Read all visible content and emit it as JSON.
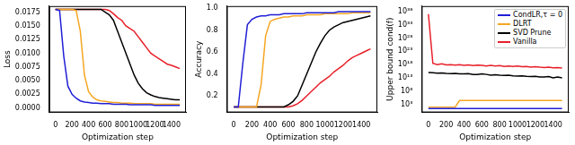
{
  "chart_data": [
    {
      "type": "line",
      "x_label": "Optimization step",
      "y_label": "Loss",
      "grid": false,
      "x": [
        0,
        50,
        100,
        150,
        200,
        250,
        300,
        350,
        400,
        450,
        500,
        550,
        600,
        650,
        700,
        750,
        800,
        850,
        900,
        950,
        1000,
        1050,
        1100,
        1150,
        1200,
        1250,
        1300,
        1350,
        1400,
        1450,
        1500
      ],
      "xlim": [
        -75,
        1575
      ],
      "xticks": [
        0,
        200,
        400,
        600,
        800,
        1000,
        1200,
        1400
      ],
      "ylim": [
        -0.0008,
        0.0186
      ],
      "yticks": [
        {
          "value": 0,
          "label": "0.0000"
        },
        {
          "value": 0.0025,
          "label": "0.0025"
        },
        {
          "value": 0.005,
          "label": "0.0050"
        },
        {
          "value": 0.0075,
          "label": "0.0075"
        },
        {
          "value": 0.01,
          "label": "0.0100"
        },
        {
          "value": 0.0125,
          "label": "0.0125"
        },
        {
          "value": 0.015,
          "label": "0.0150"
        },
        {
          "value": 0.0175,
          "label": "0.0175"
        }
      ],
      "series": [
        {
          "name": "CondLR,τ = 0",
          "color": "#1f1fd6",
          "values": [
            0.018,
            0.0178,
            0.0095,
            0.004,
            0.0025,
            0.0018,
            0.0013,
            0.0011,
            0.001,
            0.0009,
            0.0009,
            0.0008,
            0.0008,
            0.0008,
            0.0007,
            0.0007,
            0.0007,
            0.0007,
            0.0006,
            0.0006,
            0.0006,
            0.0006,
            0.0006,
            0.0006,
            0.0005,
            0.0005,
            0.0005,
            0.0005,
            0.0005,
            0.0005,
            0.0005
          ]
        },
        {
          "name": "DLRT",
          "color": "#f5a623",
          "values": [
            0.018,
            0.018,
            0.018,
            0.018,
            0.018,
            0.0178,
            0.014,
            0.006,
            0.003,
            0.002,
            0.0015,
            0.0013,
            0.0012,
            0.0011,
            0.001,
            0.001,
            0.0009,
            0.0009,
            0.0009,
            0.0008,
            0.0008,
            0.0008,
            0.0008,
            0.0008,
            0.0007,
            0.0007,
            0.0007,
            0.0007,
            0.0007,
            0.0007,
            0.0007
          ]
        },
        {
          "name": "SVD Prune",
          "color": "#000000",
          "values": [
            0.018,
            0.018,
            0.018,
            0.018,
            0.018,
            0.018,
            0.018,
            0.018,
            0.018,
            0.018,
            0.018,
            0.018,
            0.0175,
            0.017,
            0.016,
            0.014,
            0.012,
            0.01,
            0.008,
            0.006,
            0.0045,
            0.0035,
            0.0028,
            0.0024,
            0.0021,
            0.0019,
            0.0018,
            0.0017,
            0.0016,
            0.0015,
            0.0015
          ]
        },
        {
          "name": "Vanilla",
          "color": "#e8202a",
          "values": [
            0.018,
            0.018,
            0.018,
            0.018,
            0.018,
            0.018,
            0.018,
            0.018,
            0.018,
            0.018,
            0.018,
            0.018,
            0.018,
            0.0178,
            0.0172,
            0.0165,
            0.016,
            0.015,
            0.0145,
            0.014,
            0.013,
            0.012,
            0.011,
            0.01,
            0.0095,
            0.009,
            0.0085,
            0.008,
            0.0078,
            0.0075,
            0.0072
          ]
        }
      ]
    },
    {
      "type": "line",
      "x_label": "Optimization step",
      "y_label": "Accuracy",
      "grid": false,
      "x": [
        0,
        50,
        100,
        150,
        200,
        250,
        300,
        350,
        400,
        450,
        500,
        550,
        600,
        650,
        700,
        750,
        800,
        850,
        900,
        950,
        1000,
        1050,
        1100,
        1150,
        1200,
        1250,
        1300,
        1350,
        1400,
        1450,
        1500
      ],
      "xlim": [
        -75,
        1575
      ],
      "xticks": [
        0,
        200,
        400,
        600,
        800,
        1000,
        1200,
        1400
      ],
      "ylim": [
        0.05,
        1.02
      ],
      "yticks": [
        0.2,
        0.4,
        0.6,
        0.8,
        {
          "value": 1,
          "label": "1.0"
        }
      ],
      "series": [
        {
          "name": "CondLR,τ = 0",
          "color": "#1f1fd6",
          "values": [
            0.1,
            0.1,
            0.5,
            0.85,
            0.9,
            0.92,
            0.93,
            0.93,
            0.94,
            0.94,
            0.94,
            0.95,
            0.95,
            0.95,
            0.95,
            0.95,
            0.96,
            0.96,
            0.96,
            0.96,
            0.96,
            0.96,
            0.96,
            0.97,
            0.97,
            0.97,
            0.97,
            0.97,
            0.97,
            0.97,
            0.97
          ]
        },
        {
          "name": "DLRT",
          "color": "#f5a623",
          "values": [
            0.1,
            0.1,
            0.1,
            0.1,
            0.1,
            0.1,
            0.3,
            0.75,
            0.88,
            0.9,
            0.91,
            0.92,
            0.92,
            0.93,
            0.93,
            0.93,
            0.94,
            0.94,
            0.94,
            0.94,
            0.95,
            0.95,
            0.95,
            0.95,
            0.95,
            0.95,
            0.96,
            0.96,
            0.96,
            0.96,
            0.96
          ]
        },
        {
          "name": "SVD Prune",
          "color": "#000000",
          "values": [
            0.1,
            0.1,
            0.1,
            0.1,
            0.1,
            0.1,
            0.1,
            0.1,
            0.1,
            0.1,
            0.1,
            0.1,
            0.12,
            0.15,
            0.2,
            0.3,
            0.4,
            0.5,
            0.6,
            0.68,
            0.75,
            0.8,
            0.83,
            0.85,
            0.87,
            0.88,
            0.89,
            0.9,
            0.91,
            0.92,
            0.93
          ]
        },
        {
          "name": "Vanilla",
          "color": "#e8202a",
          "values": [
            0.1,
            0.1,
            0.1,
            0.1,
            0.1,
            0.1,
            0.1,
            0.1,
            0.1,
            0.1,
            0.1,
            0.1,
            0.1,
            0.11,
            0.13,
            0.16,
            0.2,
            0.24,
            0.28,
            0.32,
            0.35,
            0.38,
            0.42,
            0.45,
            0.48,
            0.52,
            0.55,
            0.57,
            0.59,
            0.61,
            0.63
          ]
        }
      ]
    },
    {
      "type": "line",
      "x_label": "Optimization step",
      "y_label": "Upper bound cond(f)",
      "grid": false,
      "log": "y",
      "legend": "upper right",
      "x": [
        0,
        50,
        100,
        150,
        200,
        250,
        300,
        350,
        400,
        450,
        500,
        550,
        600,
        650,
        700,
        750,
        800,
        850,
        900,
        950,
        1000,
        1050,
        1100,
        1150,
        1200,
        1250,
        1300,
        1350,
        1400,
        1450,
        1500
      ],
      "xlim": [
        -75,
        1575
      ],
      "xticks": [
        0,
        200,
        400,
        600,
        800,
        1000,
        1200,
        1400
      ],
      "ylim": [
        1,
        1e+40
      ],
      "yticks": [
        {
          "value": 1000.0,
          "label": "10³"
        },
        {
          "value": 100000000.0,
          "label": "10⁸"
        },
        {
          "value": 10000000000000.0,
          "label": "10¹³"
        },
        {
          "value": 1e+18,
          "label": "10¹⁸"
        },
        {
          "value": 1e+23,
          "label": "10²³"
        },
        {
          "value": 1e+28,
          "label": "10²⁸"
        },
        {
          "value": 1e+33,
          "label": "10³³"
        },
        {
          "value": 1e+38,
          "label": "10³⁸"
        }
      ],
      "series": [
        {
          "name": "CondLR,τ = 0",
          "color": "#1f1fd6",
          "values": [
            30,
            30,
            30,
            30,
            30,
            30,
            30,
            30,
            30,
            30,
            30,
            30,
            30,
            30,
            30,
            30,
            30,
            30,
            30,
            30,
            30,
            30,
            30,
            30,
            30,
            30,
            30,
            30,
            30,
            30,
            30
          ]
        },
        {
          "name": "DLRT",
          "color": "#f5a623",
          "values": [
            100,
            100,
            100,
            100,
            100,
            100,
            100,
            30000,
            30000,
            30000,
            30000,
            30000,
            30000,
            30000,
            30000,
            30000,
            30000,
            30000,
            30000,
            30000,
            30000,
            30000,
            30000,
            30000,
            30000,
            30000,
            30000,
            30000,
            30000,
            30000,
            30000
          ]
        },
        {
          "name": "SVD Prune",
          "color": "#000000",
          "values": [
            1000000000000000.0,
            800000000000000.0,
            600000000000000.0,
            700000000000000.0,
            500000000000000.0,
            400000000000000.0,
            500000000000000.0,
            300000000000000.0,
            300000000000000.0,
            400000000000000.0,
            200000000000000.0,
            200000000000000.0,
            300000000000000.0,
            200000000000000.0,
            100000000000000.0,
            150000000000000.0,
            100000000000000.0,
            80000000000000.0,
            100000000000000.0,
            60000000000000.0,
            50000000000000.0,
            60000000000000.0,
            40000000000000.0,
            30000000000000.0,
            40000000000000.0,
            20000000000000.0,
            20000000000000.0,
            30000000000000.0,
            10000000000000.0,
            20000000000000.0,
            10000000000000.0
          ]
        },
        {
          "name": "Vanilla",
          "color": "#e8202a",
          "values": [
            1e+37,
            3e+18,
            1e+18,
            2e+18,
            8e+17,
            1e+18,
            6e+17,
            1e+18,
            5e+17,
            8e+17,
            4e+17,
            6e+17,
            5e+17,
            3e+17,
            5e+17,
            3e+17,
            4e+17,
            2e+17,
            3e+17,
            2e+17,
            3e+17,
            1.5e+17,
            2e+17,
            1e+17,
            1.5e+17,
            1e+17,
            8e+16,
            1e+17,
            6e+16,
            8e+16,
            5e+16
          ]
        }
      ]
    }
  ]
}
